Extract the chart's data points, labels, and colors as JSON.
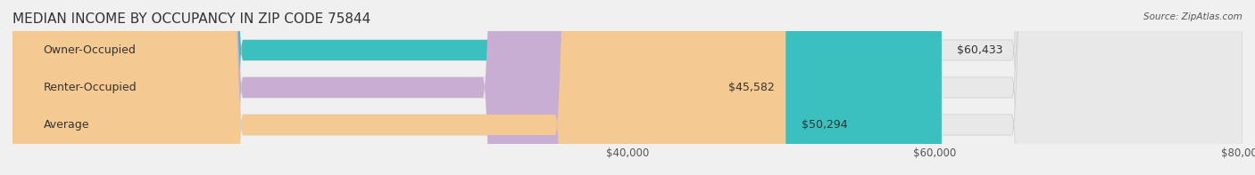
{
  "title": "MEDIAN INCOME BY OCCUPANCY IN ZIP CODE 75844",
  "source": "Source: ZipAtlas.com",
  "categories": [
    "Owner-Occupied",
    "Renter-Occupied",
    "Average"
  ],
  "values": [
    60433,
    45582,
    50294
  ],
  "bar_colors": [
    "#3bbfbf",
    "#c9aed4",
    "#f5c992"
  ],
  "value_labels": [
    "$60,433",
    "$45,582",
    "$50,294"
  ],
  "xmin": 0,
  "xmax": 80000,
  "xticks": [
    40000,
    60000,
    80000
  ],
  "xtick_labels": [
    "$40,000",
    "$60,000",
    "$80,000"
  ],
  "bar_height": 0.55,
  "background_color": "#f0f0f0",
  "bar_bg_color": "#e8e8e8",
  "title_fontsize": 11,
  "label_fontsize": 9,
  "tick_fontsize": 8.5
}
